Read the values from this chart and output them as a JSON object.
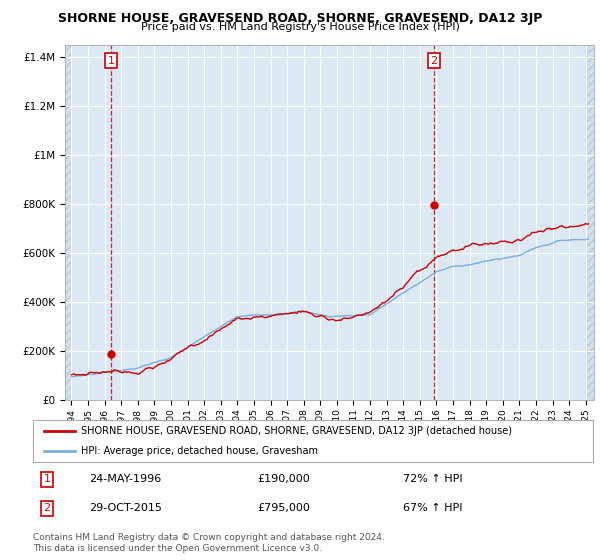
{
  "title": "SHORNE HOUSE, GRAVESEND ROAD, SHORNE, GRAVESEND, DA12 3JP",
  "subtitle": "Price paid vs. HM Land Registry's House Price Index (HPI)",
  "red_line_label": "SHORNE HOUSE, GRAVESEND ROAD, SHORNE, GRAVESEND, DA12 3JP (detached house)",
  "blue_line_label": "HPI: Average price, detached house, Gravesham",
  "transaction1_date": "24-MAY-1996",
  "transaction1_price": "£190,000",
  "transaction1_hpi": "72% ↑ HPI",
  "transaction2_date": "29-OCT-2015",
  "transaction2_price": "£795,000",
  "transaction2_hpi": "67% ↑ HPI",
  "footer": "Contains HM Land Registry data © Crown copyright and database right 2024.\nThis data is licensed under the Open Government Licence v3.0.",
  "ylim_min": 0,
  "ylim_max": 1450000,
  "yticks": [
    0,
    200000,
    400000,
    600000,
    800000,
    1000000,
    1200000,
    1400000
  ],
  "ytick_labels": [
    "£0",
    "£200K",
    "£400K",
    "£600K",
    "£800K",
    "£1M",
    "£1.2M",
    "£1.4M"
  ],
  "background_color": "#ffffff",
  "plot_bg_color": "#dce9f5",
  "hatch_left_color": "#c8d8e8",
  "red_color": "#cc0000",
  "blue_color": "#7aade0",
  "vline_color": "#cc0000",
  "marker1_x_year": 1996.38,
  "marker1_y": 190000,
  "marker2_x_year": 2015.83,
  "marker2_y": 795000,
  "xmin": 1993.6,
  "xmax": 2025.5,
  "grid_color": "#ffffff",
  "spine_color": "#aaaaaa"
}
